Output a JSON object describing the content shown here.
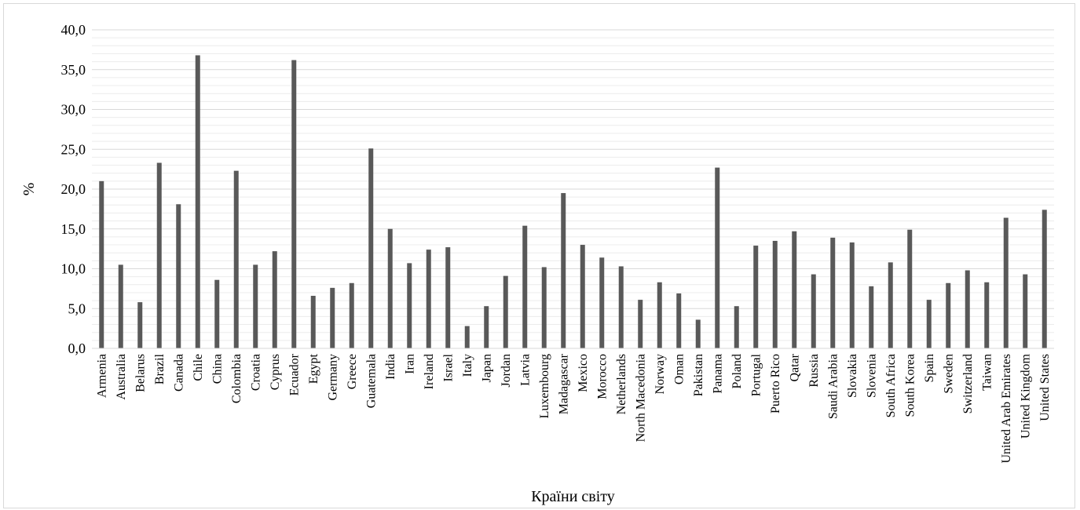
{
  "chart_data": {
    "type": "bar",
    "xlabel": "Країни світу",
    "ylabel": "%",
    "ylim": [
      0,
      40
    ],
    "yticks": [
      "0,0",
      "5,0",
      "10,0",
      "15,0",
      "20,0",
      "25,0",
      "30,0",
      "35,0",
      "40,0"
    ],
    "grid": true,
    "legend": "none",
    "bar_color": "#595959",
    "categories": [
      "Armenia",
      "Australia",
      "Belarus",
      "Brazil",
      "Canada",
      "Chile",
      "China",
      "Colombia",
      "Croatia",
      "Cyprus",
      "Ecuador",
      "Egypt",
      "Germany",
      "Greece",
      "Guatemala",
      "India",
      "Iran",
      "Ireland",
      "Israel",
      "Italy",
      "Japan",
      "Jordan",
      "Latvia",
      "Luxembourg",
      "Madagascar",
      "Mexico",
      "Morocco",
      "Netherlands",
      "North Macedonia",
      "Norway",
      "Oman",
      "Pakistan",
      "Panama",
      "Poland",
      "Portugal",
      "Puerto Rico",
      "Qatar",
      "Russia",
      "Saudi Arabia",
      "Slovakia",
      "Slovenia",
      "South Africa",
      "South Korea",
      "Spain",
      "Sweden",
      "Switzerland",
      "Taiwan",
      "United Arab Emirates",
      "United Kingdom",
      "United States"
    ],
    "values": [
      21.0,
      10.5,
      5.8,
      23.3,
      18.1,
      36.8,
      8.6,
      22.3,
      10.5,
      12.2,
      36.2,
      6.6,
      7.6,
      8.2,
      25.1,
      15.0,
      10.7,
      12.4,
      12.7,
      2.8,
      5.3,
      9.1,
      15.4,
      10.2,
      19.5,
      13.0,
      11.4,
      10.3,
      6.1,
      8.3,
      6.9,
      3.6,
      22.7,
      5.3,
      12.9,
      13.5,
      14.7,
      9.3,
      13.9,
      13.3,
      7.8,
      10.8,
      14.9,
      6.1,
      8.2,
      9.8,
      8.3,
      16.4,
      9.3,
      17.4
    ]
  }
}
